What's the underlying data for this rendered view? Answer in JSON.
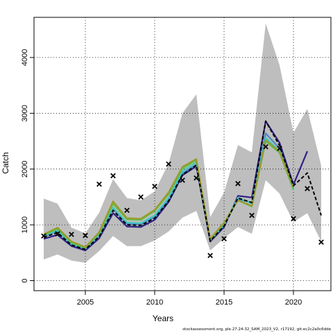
{
  "chart_data": {
    "type": "line",
    "title": "",
    "xlabel": "Years",
    "ylabel": "Catch",
    "xlim": [
      2001.3,
      2022.7
    ],
    "ylim": [
      -180,
      4720
    ],
    "xticks": [
      2005,
      2010,
      2015,
      2020
    ],
    "yticks": [
      0,
      1000,
      2000,
      3000,
      4000
    ],
    "grid": true,
    "confidence_band": {
      "color": "#bebebe",
      "x": [
        2002,
        2003,
        2004,
        2005,
        2006,
        2007,
        2008,
        2009,
        2010,
        2011,
        2012,
        2013,
        2014,
        2015,
        2016,
        2017,
        2018,
        2019,
        2020,
        2021,
        2022
      ],
      "upper": [
        1470,
        1380,
        950,
        850,
        1220,
        1820,
        1480,
        1440,
        1600,
        2100,
        3000,
        3340,
        1140,
        1580,
        2430,
        2300,
        4610,
        3860,
        2650,
        3080,
        2060
      ],
      "lower": [
        380,
        470,
        360,
        320,
        530,
        800,
        620,
        620,
        720,
        880,
        1130,
        1250,
        540,
        760,
        960,
        840,
        1800,
        1560,
        1050,
        1210,
        700
      ]
    },
    "series": [
      {
        "color": "#2e1f84",
        "x": [
          2002,
          2003,
          2004,
          2005,
          2006,
          2007,
          2008,
          2009,
          2010,
          2011,
          2012,
          2013,
          2014,
          2015,
          2016,
          2017,
          2018,
          2019,
          2020,
          2021
        ],
        "values": [
          750,
          820,
          620,
          540,
          760,
          1210,
          970,
          960,
          1090,
          1410,
          1890,
          2050,
          700,
          960,
          1520,
          1490,
          2860,
          2470,
          1720,
          2320
        ]
      },
      {
        "color": "#4a8ac0",
        "x": [
          2002,
          2003,
          2004,
          2005,
          2006,
          2007,
          2008,
          2009,
          2010,
          2011,
          2012,
          2013,
          2014,
          2015,
          2016,
          2017,
          2018,
          2019,
          2020
        ],
        "values": [
          790,
          890,
          650,
          570,
          810,
          1290,
          1020,
          1010,
          1140,
          1450,
          1920,
          2080,
          720,
          990,
          1460,
          1400,
          2640,
          2370,
          1650
        ]
      },
      {
        "color": "#40c8c0",
        "x": [
          2002,
          2003,
          2004,
          2005,
          2006,
          2007,
          2008,
          2009,
          2010,
          2011,
          2012,
          2013,
          2014,
          2015,
          2016,
          2017,
          2018,
          2019,
          2020
        ],
        "values": [
          800,
          900,
          660,
          580,
          820,
          1310,
          1040,
          1030,
          1170,
          1480,
          1960,
          2120,
          730,
          1010,
          1490,
          1380,
          2560,
          2320,
          1620
        ]
      },
      {
        "color": "#5fbf4a",
        "x": [
          2002,
          2003,
          2004,
          2005,
          2006,
          2007,
          2008,
          2009,
          2010,
          2011,
          2012,
          2013,
          2014,
          2015,
          2016,
          2017,
          2018,
          2019,
          2020
        ],
        "values": [
          820,
          930,
          680,
          590,
          850,
          1380,
          1100,
          1090,
          1250,
          1550,
          2010,
          2160,
          740,
          1030,
          1440,
          1330,
          2500,
          2290,
          1640
        ]
      },
      {
        "color": "#9a9a2a",
        "x": [
          2002,
          2003,
          2004,
          2005,
          2006,
          2007,
          2008,
          2009,
          2010,
          2011,
          2012,
          2013,
          2014,
          2015,
          2016,
          2017,
          2018,
          2019,
          2020
        ],
        "values": [
          830,
          950,
          700,
          600,
          870,
          1420,
          1120,
          1110,
          1270,
          1580,
          2040,
          2180,
          750,
          1040,
          1440,
          1340,
          2520,
          2310,
          1670
        ]
      },
      {
        "color": "#000000",
        "dashed": true,
        "x": [
          2002,
          2003,
          2004,
          2005,
          2006,
          2007,
          2008,
          2009,
          2010,
          2011,
          2012,
          2013,
          2014,
          2015,
          2016,
          2017,
          2018,
          2019,
          2020,
          2021,
          2022
        ],
        "values": [
          780,
          860,
          640,
          560,
          790,
          1260,
          1000,
          990,
          1120,
          1430,
          1900,
          2070,
          710,
          980,
          1480,
          1400,
          2860,
          2420,
          1700,
          1930,
          1170
        ]
      }
    ],
    "observations": {
      "marker": "x",
      "x": [
        2002,
        2003,
        2004,
        2005,
        2006,
        2007,
        2008,
        2009,
        2010,
        2011,
        2012,
        2013,
        2014,
        2015,
        2016,
        2017,
        2018,
        2019,
        2020,
        2021,
        2022
      ],
      "values": [
        800,
        840,
        830,
        810,
        1730,
        1880,
        1260,
        1500,
        1690,
        2090,
        1800,
        1840,
        450,
        750,
        1740,
        1170,
        2400,
        2370,
        1110,
        1650,
        690
      ]
    }
  },
  "footer_text": "stockassessment.org, ple.27.24-32_SAM_2023_V2, r17192, git:ec2c2a0c6dde"
}
